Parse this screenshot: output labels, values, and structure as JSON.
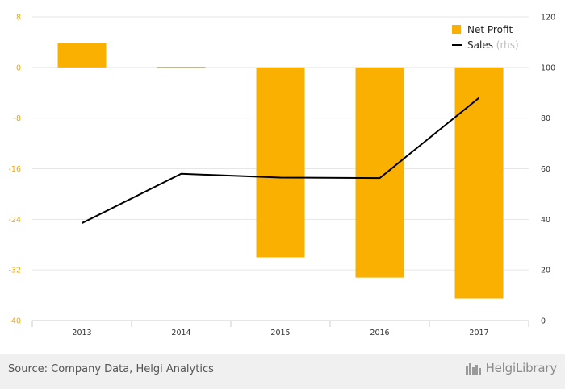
{
  "chart_data": {
    "type": "bar+line",
    "categories": [
      "2013",
      "2014",
      "2015",
      "2016",
      "2017"
    ],
    "series": [
      {
        "name": "Net Profit",
        "type": "bar",
        "axis": "left",
        "color": "#f9b000",
        "values": [
          3.8,
          0.1,
          -30.0,
          -33.2,
          -36.5
        ]
      },
      {
        "name": "Sales",
        "note": "(rhs)",
        "type": "line",
        "axis": "right",
        "color": "#000000",
        "values": [
          38.5,
          58.0,
          56.5,
          56.3,
          88.0
        ]
      }
    ],
    "left_axis": {
      "min": -40,
      "max": 8,
      "ticks": [
        "8",
        "0",
        "-8",
        "-16",
        "-24",
        "-32",
        "-40"
      ],
      "tick_values": [
        8,
        0,
        -8,
        -16,
        -24,
        -32,
        -40
      ],
      "color": "#f5a800"
    },
    "right_axis": {
      "min": 0,
      "max": 120,
      "ticks": [
        "120",
        "100",
        "80",
        "60",
        "40",
        "20",
        "0"
      ],
      "tick_values": [
        120,
        100,
        80,
        60,
        40,
        20,
        0
      ]
    },
    "grid": true,
    "legend": "top-right"
  },
  "footer": {
    "source": "Source: Company Data, Helgi Analytics",
    "brand": "HelgiLibrary"
  }
}
